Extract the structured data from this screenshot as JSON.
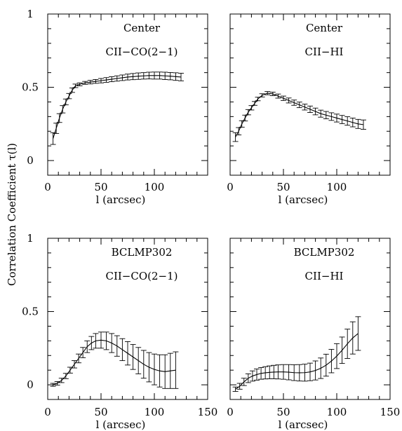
{
  "ylabel": "Correlation Coefficient τ(l)",
  "chart_data": [
    {
      "type": "line",
      "id": "top-left",
      "labels": [
        "Center",
        "CII−CO(2−1)"
      ],
      "xlabel": "l (arcsec)",
      "xlim": [
        0,
        150
      ],
      "ylim": [
        -0.1,
        1
      ],
      "xticks_major": [
        "0",
        "50",
        "100"
      ],
      "yticks_major": [
        "0",
        "0.5",
        "1"
      ],
      "series": [
        {
          "x": [
            5,
            8,
            11,
            14,
            17,
            20,
            23,
            26,
            30,
            35,
            40,
            45,
            50,
            55,
            60,
            65,
            70,
            75,
            80,
            85,
            90,
            95,
            100,
            105,
            110,
            115,
            120,
            125
          ],
          "y": [
            0.15,
            0.22,
            0.29,
            0.35,
            0.4,
            0.44,
            0.48,
            0.51,
            0.52,
            0.53,
            0.535,
            0.54,
            0.545,
            0.55,
            0.555,
            0.56,
            0.565,
            0.57,
            0.573,
            0.576,
            0.578,
            0.58,
            0.58,
            0.58,
            0.578,
            0.576,
            0.573,
            0.57
          ],
          "err": [
            0.04,
            0.035,
            0.03,
            0.025,
            0.02,
            0.018,
            0.015,
            0.012,
            0.01,
            0.01,
            0.012,
            0.013,
            0.015,
            0.016,
            0.017,
            0.018,
            0.019,
            0.02,
            0.021,
            0.022,
            0.022,
            0.023,
            0.024,
            0.024,
            0.025,
            0.025,
            0.026,
            0.026
          ]
        }
      ]
    },
    {
      "type": "line",
      "id": "top-right",
      "labels": [
        "Center",
        "CII−HI"
      ],
      "xlabel": "l (arcsec)",
      "xlim": [
        0,
        150
      ],
      "ylim": [
        -0.1,
        1
      ],
      "xticks_major": [
        "0",
        "50",
        "100"
      ],
      "yticks_major": [],
      "series": [
        {
          "x": [
            5,
            8,
            11,
            14,
            17,
            20,
            23,
            26,
            30,
            35,
            40,
            45,
            50,
            55,
            60,
            65,
            70,
            75,
            80,
            85,
            90,
            95,
            100,
            105,
            110,
            115,
            120,
            125
          ],
          "y": [
            0.16,
            0.2,
            0.25,
            0.29,
            0.33,
            0.36,
            0.39,
            0.42,
            0.445,
            0.46,
            0.455,
            0.44,
            0.425,
            0.41,
            0.395,
            0.38,
            0.365,
            0.35,
            0.335,
            0.32,
            0.31,
            0.3,
            0.29,
            0.28,
            0.27,
            0.26,
            0.25,
            0.245
          ],
          "err": [
            0.03,
            0.025,
            0.022,
            0.02,
            0.018,
            0.015,
            0.013,
            0.012,
            0.011,
            0.011,
            0.012,
            0.014,
            0.015,
            0.017,
            0.018,
            0.019,
            0.02,
            0.022,
            0.023,
            0.024,
            0.025,
            0.026,
            0.027,
            0.028,
            0.029,
            0.03,
            0.031,
            0.032
          ]
        }
      ]
    },
    {
      "type": "line",
      "id": "bottom-left",
      "labels": [
        "BCLMP302",
        "CII−CO(2−1)"
      ],
      "xlabel": "l (arcsec)",
      "xlim": [
        0,
        150
      ],
      "ylim": [
        -0.1,
        1
      ],
      "xticks_major": [
        "0",
        "50",
        "100",
        "150"
      ],
      "yticks_major": [
        "0",
        "0.5",
        "1"
      ],
      "series": [
        {
          "x": [
            5,
            9,
            13,
            17,
            21,
            25,
            29,
            33,
            37,
            41,
            45,
            50,
            55,
            60,
            65,
            70,
            75,
            80,
            85,
            90,
            95,
            100,
            105,
            110,
            115,
            120
          ],
          "y": [
            0.0,
            0.01,
            0.03,
            0.06,
            0.1,
            0.14,
            0.18,
            0.22,
            0.26,
            0.285,
            0.3,
            0.305,
            0.3,
            0.285,
            0.265,
            0.24,
            0.215,
            0.19,
            0.165,
            0.14,
            0.12,
            0.105,
            0.095,
            0.09,
            0.095,
            0.1
          ],
          "err": [
            0.01,
            0.012,
            0.015,
            0.018,
            0.02,
            0.025,
            0.03,
            0.035,
            0.04,
            0.045,
            0.05,
            0.055,
            0.06,
            0.065,
            0.07,
            0.075,
            0.08,
            0.085,
            0.09,
            0.095,
            0.1,
            0.105,
            0.11,
            0.115,
            0.12,
            0.125
          ]
        }
      ]
    },
    {
      "type": "line",
      "id": "bottom-right",
      "labels": [
        "BCLMP302",
        "CII−HI"
      ],
      "xlabel": "l (arcsec)",
      "xlim": [
        0,
        150
      ],
      "ylim": [
        -0.1,
        1
      ],
      "xticks_major": [
        "0",
        "50",
        "100",
        "150"
      ],
      "yticks_major": [],
      "series": [
        {
          "x": [
            5,
            9,
            13,
            17,
            21,
            25,
            29,
            33,
            37,
            41,
            45,
            50,
            55,
            60,
            65,
            70,
            75,
            80,
            85,
            90,
            95,
            100,
            105,
            110,
            115,
            120
          ],
          "y": [
            -0.03,
            -0.01,
            0.02,
            0.045,
            0.06,
            0.07,
            0.078,
            0.082,
            0.085,
            0.087,
            0.088,
            0.088,
            0.086,
            0.083,
            0.082,
            0.083,
            0.088,
            0.098,
            0.113,
            0.134,
            0.162,
            0.196,
            0.236,
            0.28,
            0.32,
            0.35
          ],
          "err": [
            0.015,
            0.02,
            0.025,
            0.03,
            0.035,
            0.038,
            0.04,
            0.042,
            0.044,
            0.046,
            0.048,
            0.05,
            0.052,
            0.054,
            0.056,
            0.058,
            0.06,
            0.065,
            0.07,
            0.075,
            0.08,
            0.085,
            0.09,
            0.1,
            0.11,
            0.115
          ]
        }
      ]
    }
  ]
}
